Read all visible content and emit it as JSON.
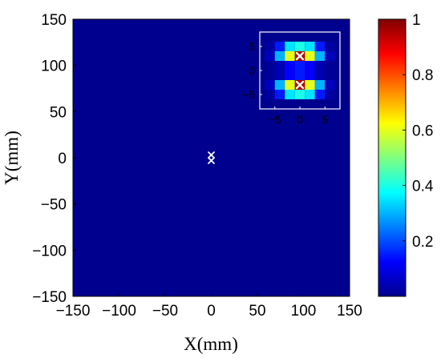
{
  "chart_data": [
    {
      "type": "heatmap",
      "title": "",
      "xlabel": "X(mm)",
      "ylabel": "Y(mm)",
      "xlim": [
        -150,
        150
      ],
      "ylim": [
        -150,
        150
      ],
      "xticks": [
        "-150",
        "-100",
        "-50",
        "0",
        "50",
        "100",
        "150"
      ],
      "yticks": [
        "-150",
        "-100",
        "-50",
        "0",
        "50",
        "100",
        "150"
      ],
      "background_value": 0.0,
      "markers": [
        {
          "symbol": "x",
          "x": 0,
          "y": 3,
          "color": "#ffffff"
        },
        {
          "symbol": "x",
          "x": 0,
          "y": -3,
          "color": "#ffffff"
        }
      ],
      "colorbar": {
        "colormap": "jet",
        "range": [
          0,
          1
        ],
        "ticks": [
          "0.2",
          "0.4",
          "0.6",
          "0.8",
          "1"
        ]
      }
    },
    {
      "type": "heatmap",
      "role": "inset",
      "xlim": [
        -8,
        8
      ],
      "ylim": [
        -8,
        8
      ],
      "xticks": [
        "-5",
        "0",
        "5"
      ],
      "yticks": [
        "-5",
        "0",
        "5"
      ],
      "x_centers": [
        -6,
        -4,
        -2,
        0,
        2,
        4,
        6
      ],
      "y_centers": [
        5,
        3,
        1,
        -1,
        -3,
        -5
      ],
      "values": [
        [
          0.02,
          0.15,
          0.35,
          0.4,
          0.35,
          0.15,
          0.02
        ],
        [
          0.05,
          0.3,
          0.6,
          0.95,
          0.6,
          0.3,
          0.05
        ],
        [
          0.01,
          0.04,
          0.12,
          0.15,
          0.12,
          0.04,
          0.01
        ],
        [
          0.01,
          0.04,
          0.12,
          0.15,
          0.12,
          0.04,
          0.01
        ],
        [
          0.05,
          0.3,
          0.6,
          0.95,
          0.6,
          0.3,
          0.05
        ],
        [
          0.02,
          0.15,
          0.35,
          0.4,
          0.35,
          0.15,
          0.02
        ]
      ],
      "markers": [
        {
          "symbol": "x",
          "x": 0,
          "y": 3,
          "color": "#ffffff"
        },
        {
          "symbol": "x",
          "x": 0,
          "y": -3,
          "color": "#ffffff"
        }
      ]
    }
  ],
  "colors": {
    "background_field": "#00008f",
    "marker": "#ffffff",
    "frame": "#000000"
  }
}
